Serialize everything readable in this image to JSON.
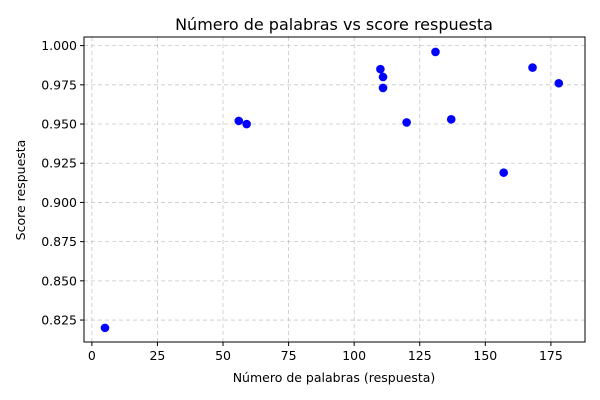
{
  "chart_data": {
    "type": "scatter",
    "title": "Número de palabras vs score respuesta",
    "xlabel": "Número de palabras (respuesta)",
    "ylabel": "Score respuesta",
    "xlim": [
      -3,
      188
    ],
    "ylim": [
      0.811,
      1.0055
    ],
    "xticks": [
      0,
      25,
      50,
      75,
      100,
      125,
      150,
      175
    ],
    "yticks": [
      0.825,
      0.85,
      0.875,
      0.9,
      0.925,
      0.95,
      0.975,
      1.0
    ],
    "xtick_labels": [
      "0",
      "25",
      "50",
      "75",
      "100",
      "125",
      "150",
      "175"
    ],
    "ytick_labels": [
      "0.825",
      "0.850",
      "0.875",
      "0.900",
      "0.925",
      "0.950",
      "0.975",
      "1.000"
    ],
    "grid": true,
    "point_color": "#0000ff",
    "points": [
      {
        "x": 5,
        "y": 0.82
      },
      {
        "x": 56,
        "y": 0.952
      },
      {
        "x": 59,
        "y": 0.95
      },
      {
        "x": 110,
        "y": 0.985
      },
      {
        "x": 111,
        "y": 0.98
      },
      {
        "x": 111,
        "y": 0.973
      },
      {
        "x": 120,
        "y": 0.951
      },
      {
        "x": 131,
        "y": 0.996
      },
      {
        "x": 137,
        "y": 0.953
      },
      {
        "x": 157,
        "y": 0.919
      },
      {
        "x": 168,
        "y": 0.986
      },
      {
        "x": 178,
        "y": 0.976
      }
    ]
  }
}
